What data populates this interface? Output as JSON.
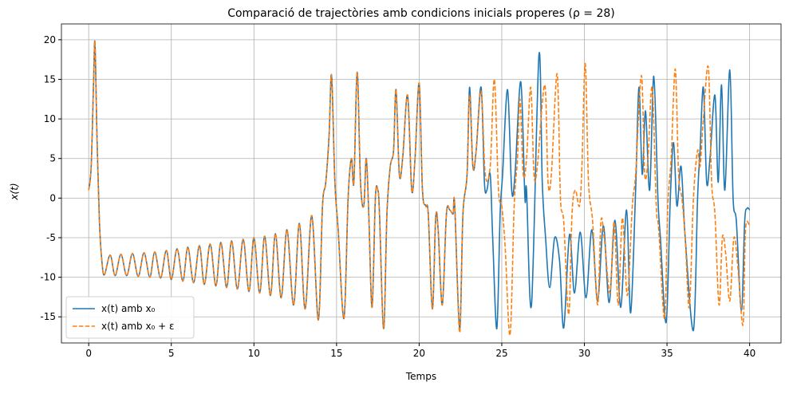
{
  "chart_data": {
    "type": "line",
    "title": "Comparació de trajectòries amb condicions inicials properes (ρ = 28)",
    "xlabel": "Temps",
    "ylabel": "x(t)",
    "xlim": [
      -1.65,
      41.9
    ],
    "ylim": [
      -18.3,
      22.0
    ],
    "xticks": [
      0,
      5,
      10,
      15,
      20,
      25,
      30,
      35,
      40
    ],
    "yticks": [
      -15,
      -10,
      -5,
      0,
      5,
      10,
      15,
      20
    ],
    "grid": true,
    "legend": "lower left",
    "series": [
      {
        "name": "x(t) amb x₀",
        "color": "#1f77b4",
        "dash": false,
        "x": [
          0,
          0.15,
          0.3,
          0.38,
          0.5,
          0.65,
          0.8,
          0.95,
          1.3,
          1.6,
          1.95,
          2.3,
          2.65,
          3.0,
          3.35,
          3.7,
          4.0,
          4.35,
          4.7,
          5.0,
          5.35,
          5.7,
          6.0,
          6.35,
          6.7,
          7.0,
          7.35,
          7.7,
          8.0,
          8.35,
          8.65,
          9.0,
          9.35,
          9.7,
          10.0,
          10.35,
          10.65,
          11.0,
          11.3,
          11.65,
          12.0,
          12.4,
          12.75,
          13.1,
          13.5,
          13.9,
          14.15,
          14.35,
          14.55,
          14.7,
          14.9,
          15.1,
          15.45,
          15.7,
          15.9,
          16.05,
          16.25,
          16.45,
          16.65,
          16.8,
          16.95,
          17.15,
          17.35,
          17.5,
          17.6,
          17.85,
          18.05,
          18.25,
          18.45,
          18.6,
          18.8,
          19.0,
          19.3,
          19.55,
          19.75,
          20.0,
          20.2,
          20.4,
          20.55,
          20.8,
          21.0,
          21.15,
          21.4,
          21.65,
          21.85,
          22.05,
          22.15,
          22.45,
          22.65,
          22.9,
          23.05,
          23.25,
          23.45,
          23.75,
          23.95,
          24.1,
          24.3,
          24.45,
          24.7,
          24.9,
          25.05,
          25.35,
          25.6,
          25.8,
          26.15,
          26.4,
          26.5,
          26.8,
          27.25,
          27.45,
          27.65,
          27.9,
          28.2,
          28.5,
          28.75,
          29.1,
          29.4,
          29.75,
          30.1,
          30.45,
          30.8,
          31.15,
          31.5,
          31.85,
          32.2,
          32.55,
          32.8,
          33.1,
          33.3,
          33.5,
          33.7,
          33.95,
          34.2,
          34.45,
          34.6,
          34.95,
          35.2,
          35.4,
          35.6,
          35.85,
          36.1,
          36.6,
          36.85,
          37.0,
          37.2,
          37.4,
          37.6,
          37.9,
          38.1,
          38.3,
          38.5,
          38.8,
          39.0,
          39.2,
          39.5,
          39.7,
          39.85,
          40
        ],
        "values": [
          1,
          4,
          15,
          19.6,
          8,
          -3,
          -8,
          -9.7,
          -7.2,
          -9.8,
          -7.1,
          -9.8,
          -7.0,
          -9.9,
          -6.9,
          -10,
          -6.8,
          -10.1,
          -6.6,
          -10.3,
          -6.4,
          -10.5,
          -6.2,
          -10.7,
          -6.0,
          -10.9,
          -5.8,
          -11.1,
          -5.6,
          -11.3,
          -5.4,
          -11.5,
          -5.2,
          -11.8,
          -5.0,
          -12.0,
          -4.8,
          -12.3,
          -4.5,
          -12.6,
          -4.0,
          -13.5,
          -3.2,
          -14,
          -2.2,
          -15.4,
          -1,
          2,
          8,
          15.5,
          2,
          -4,
          -15.2,
          0,
          5,
          2,
          15.9,
          2,
          -1,
          5,
          -2,
          -13.8,
          0,
          1,
          -2,
          -16.5,
          -2,
          4,
          6,
          13.7,
          3,
          5,
          13,
          1,
          5,
          14.5,
          1,
          -1,
          -2,
          -14,
          -2.5,
          -4,
          -13.5,
          -2,
          -1.5,
          -2,
          -0.8,
          -16.5,
          -2,
          3,
          14,
          4,
          6,
          14,
          2,
          1,
          3,
          -5,
          -16.5,
          -2,
          3,
          13.7,
          1,
          3,
          14.7,
          0,
          1,
          -13.5,
          18.1,
          2,
          -5,
          -11.3,
          -5,
          -8,
          -16.4,
          -4.6,
          -12,
          -4.3,
          -12.6,
          -4,
          -13,
          -3.5,
          -13.2,
          -2.8,
          -13.8,
          -1.5,
          -14.5,
          1,
          14,
          3,
          11,
          1,
          15.4,
          0,
          -5,
          -15.7,
          0,
          7,
          -1,
          4,
          -5,
          -16.7,
          0,
          6,
          14,
          2,
          5,
          13,
          2,
          14.3,
          1,
          16.2,
          0,
          -3,
          -14.2,
          -3,
          -1.3,
          -1.5
        ]
      },
      {
        "name": "x(t) amb x₀ + ε",
        "color": "#ff7f0e",
        "dash": true,
        "x": [
          0,
          0.15,
          0.3,
          0.38,
          0.5,
          0.65,
          0.8,
          0.95,
          1.3,
          1.6,
          1.95,
          2.3,
          2.65,
          3.0,
          3.35,
          3.7,
          4.0,
          4.35,
          4.7,
          5.0,
          5.35,
          5.7,
          6.0,
          6.35,
          6.7,
          7.0,
          7.35,
          7.7,
          8.0,
          8.35,
          8.65,
          9.0,
          9.35,
          9.7,
          10.0,
          10.35,
          10.65,
          11.0,
          11.3,
          11.65,
          12.0,
          12.4,
          12.75,
          13.1,
          13.5,
          13.9,
          14.15,
          14.35,
          14.55,
          14.7,
          14.9,
          15.1,
          15.45,
          15.7,
          15.9,
          16.05,
          16.25,
          16.45,
          16.65,
          16.8,
          16.95,
          17.15,
          17.35,
          17.5,
          17.6,
          17.85,
          18.05,
          18.25,
          18.45,
          18.6,
          18.8,
          19.0,
          19.3,
          19.55,
          19.75,
          20.0,
          20.2,
          20.4,
          20.55,
          20.8,
          21.0,
          21.15,
          21.4,
          21.65,
          21.85,
          22.05,
          22.15,
          22.45,
          22.65,
          22.9,
          23.05,
          23.25,
          23.45,
          23.75,
          24.0,
          24.3,
          24.55,
          24.8,
          25.0,
          25.2,
          25.5,
          25.75,
          25.95,
          26.1,
          26.3,
          26.5,
          26.75,
          26.95,
          27.15,
          27.6,
          27.8,
          28.0,
          28.35,
          28.55,
          28.75,
          29.05,
          29.25,
          29.45,
          29.7,
          29.85,
          30.05,
          30.25,
          30.5,
          30.8,
          31.0,
          31.2,
          31.55,
          31.8,
          32.05,
          32.3,
          32.6,
          32.9,
          33.1,
          33.45,
          33.65,
          33.85,
          34.1,
          34.35,
          34.5,
          34.85,
          35.05,
          35.25,
          35.5,
          35.7,
          35.9,
          36.1,
          36.35,
          36.6,
          36.85,
          37.0,
          37.2,
          37.5,
          37.7,
          37.9,
          38.15,
          38.35,
          38.55,
          38.8,
          39.05,
          39.3,
          39.6,
          39.75,
          40
        ],
        "values": [
          1,
          4,
          15,
          19.6,
          8,
          -3,
          -8,
          -9.7,
          -7.2,
          -9.8,
          -7.1,
          -9.8,
          -7.0,
          -9.9,
          -6.9,
          -10,
          -6.8,
          -10.1,
          -6.6,
          -10.3,
          -6.4,
          -10.5,
          -6.2,
          -10.7,
          -6.0,
          -10.9,
          -5.8,
          -11.1,
          -5.6,
          -11.3,
          -5.4,
          -11.5,
          -5.2,
          -11.8,
          -5.0,
          -12.0,
          -4.8,
          -12.3,
          -4.5,
          -12.6,
          -4.0,
          -13.5,
          -3.2,
          -14,
          -2.2,
          -15.4,
          -1,
          2,
          8,
          15.5,
          2,
          -4,
          -15.2,
          0,
          5,
          2,
          15.9,
          2,
          -1,
          5,
          -2,
          -13.8,
          0,
          1,
          -2,
          -16.5,
          -2,
          4,
          6,
          13.7,
          3,
          5,
          13,
          1,
          5,
          14.5,
          1,
          -1,
          -2,
          -14,
          -2.5,
          -4,
          -13.5,
          -2,
          -1.5,
          -2,
          -0.8,
          -17,
          -2,
          3,
          13,
          4,
          6,
          13.5,
          3,
          4,
          15,
          1,
          -1,
          -6,
          -17.3,
          -1,
          5,
          12.5,
          3,
          5,
          14,
          3,
          4,
          14.3,
          2,
          3,
          15.7,
          0,
          -3,
          -14.7,
          -2,
          1,
          -1,
          4,
          17,
          2,
          -3,
          -13.5,
          -3,
          -5,
          -12,
          -3,
          -13.5,
          -2.5,
          -12.3,
          -1,
          3,
          15.5,
          3,
          5,
          14,
          -1,
          -4,
          -15.2,
          -1,
          5,
          16.3,
          3,
          0,
          -5,
          -13.8,
          0,
          6,
          4,
          10,
          16.5,
          2,
          -2,
          -13.5,
          -5,
          -7,
          -13,
          -5,
          -9,
          -16,
          -4,
          -3.5
        ]
      }
    ]
  }
}
